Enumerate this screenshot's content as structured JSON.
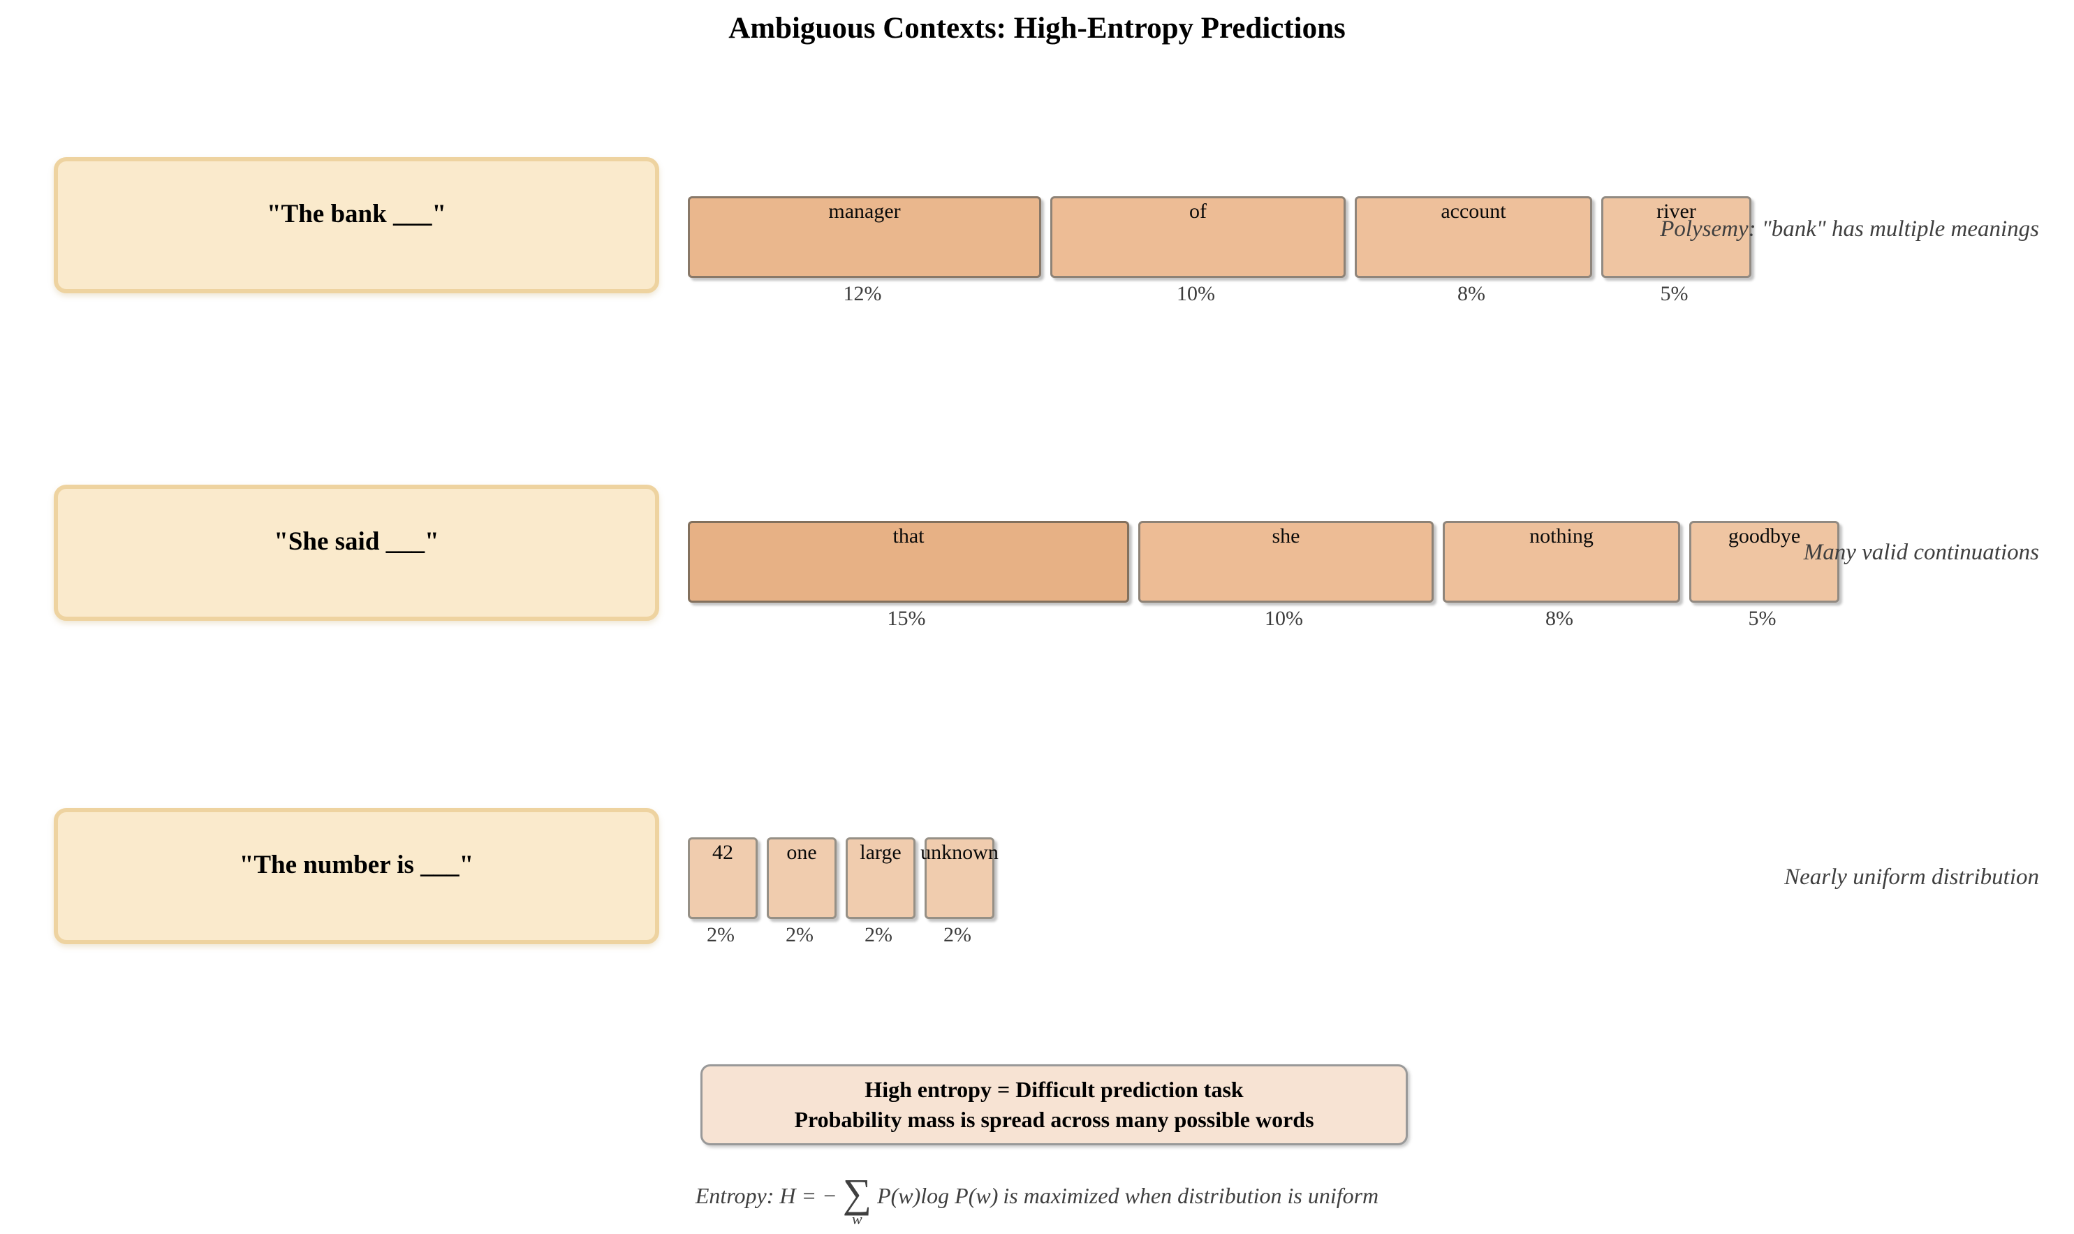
{
  "title": "Ambiguous Contexts: High-Entropy Predictions",
  "palette": {
    "context_fill": "#faeacc",
    "context_border": "#eed3a0",
    "summary_fill": "#f7e3d3",
    "summary_border": "#999999",
    "annotation_color": "#3f3f3f",
    "percent_color": "#3c3c3c"
  },
  "rows": [
    {
      "context": "\"The bank ___\"",
      "annotation": "Polysemy: \"bank\" has multiple meanings",
      "predictions": [
        {
          "word": "manager",
          "prob_pct": 12,
          "prob_label": "12%",
          "fill": "#eab78d",
          "border": "#887868"
        },
        {
          "word": "of",
          "prob_pct": 10,
          "prob_label": "10%",
          "fill": "#edbc95",
          "border": "#8d8276"
        },
        {
          "word": "account",
          "prob_pct": 8,
          "prob_label": "8%",
          "fill": "#eec09b",
          "border": "#8f857b"
        },
        {
          "word": "river",
          "prob_pct": 5,
          "prob_label": "5%",
          "fill": "#efc5a2",
          "border": "#918a82"
        }
      ]
    },
    {
      "context": "\"She said ___\"",
      "annotation": "Many valid continuations",
      "predictions": [
        {
          "word": "that",
          "prob_pct": 15,
          "prob_label": "15%",
          "fill": "#e7b185",
          "border": "#82705d"
        },
        {
          "word": "she",
          "prob_pct": 10,
          "prob_label": "10%",
          "fill": "#edbc95",
          "border": "#8d8276"
        },
        {
          "word": "nothing",
          "prob_pct": 8,
          "prob_label": "8%",
          "fill": "#eec09b",
          "border": "#8f857b"
        },
        {
          "word": "goodbye",
          "prob_pct": 5,
          "prob_label": "5%",
          "fill": "#efc5a2",
          "border": "#918a82"
        }
      ]
    },
    {
      "context": "\"The number is ___\"",
      "annotation": "Nearly uniform distribution",
      "predictions": [
        {
          "word": "42",
          "prob_pct": 2,
          "prob_label": "2%",
          "fill": "#f0ccae",
          "border": "#969086"
        },
        {
          "word": "one",
          "prob_pct": 2,
          "prob_label": "2%",
          "fill": "#f0ccae",
          "border": "#969086"
        },
        {
          "word": "large",
          "prob_pct": 2,
          "prob_label": "2%",
          "fill": "#f0ccae",
          "border": "#969086"
        },
        {
          "word": "unknown",
          "prob_pct": 2,
          "prob_label": "2%",
          "fill": "#f0ccae",
          "border": "#969086"
        }
      ]
    }
  ],
  "summary": {
    "line1": "High entropy = Difficult prediction task",
    "line2": "Probability mass is spread across many possible words"
  },
  "formula": {
    "prefix": "Entropy: H = −",
    "sum_symbol": "∑",
    "sum_subscript": "w",
    "body": "P(w)log P(w)",
    "suffix": "is maximized when distribution is uniform"
  }
}
